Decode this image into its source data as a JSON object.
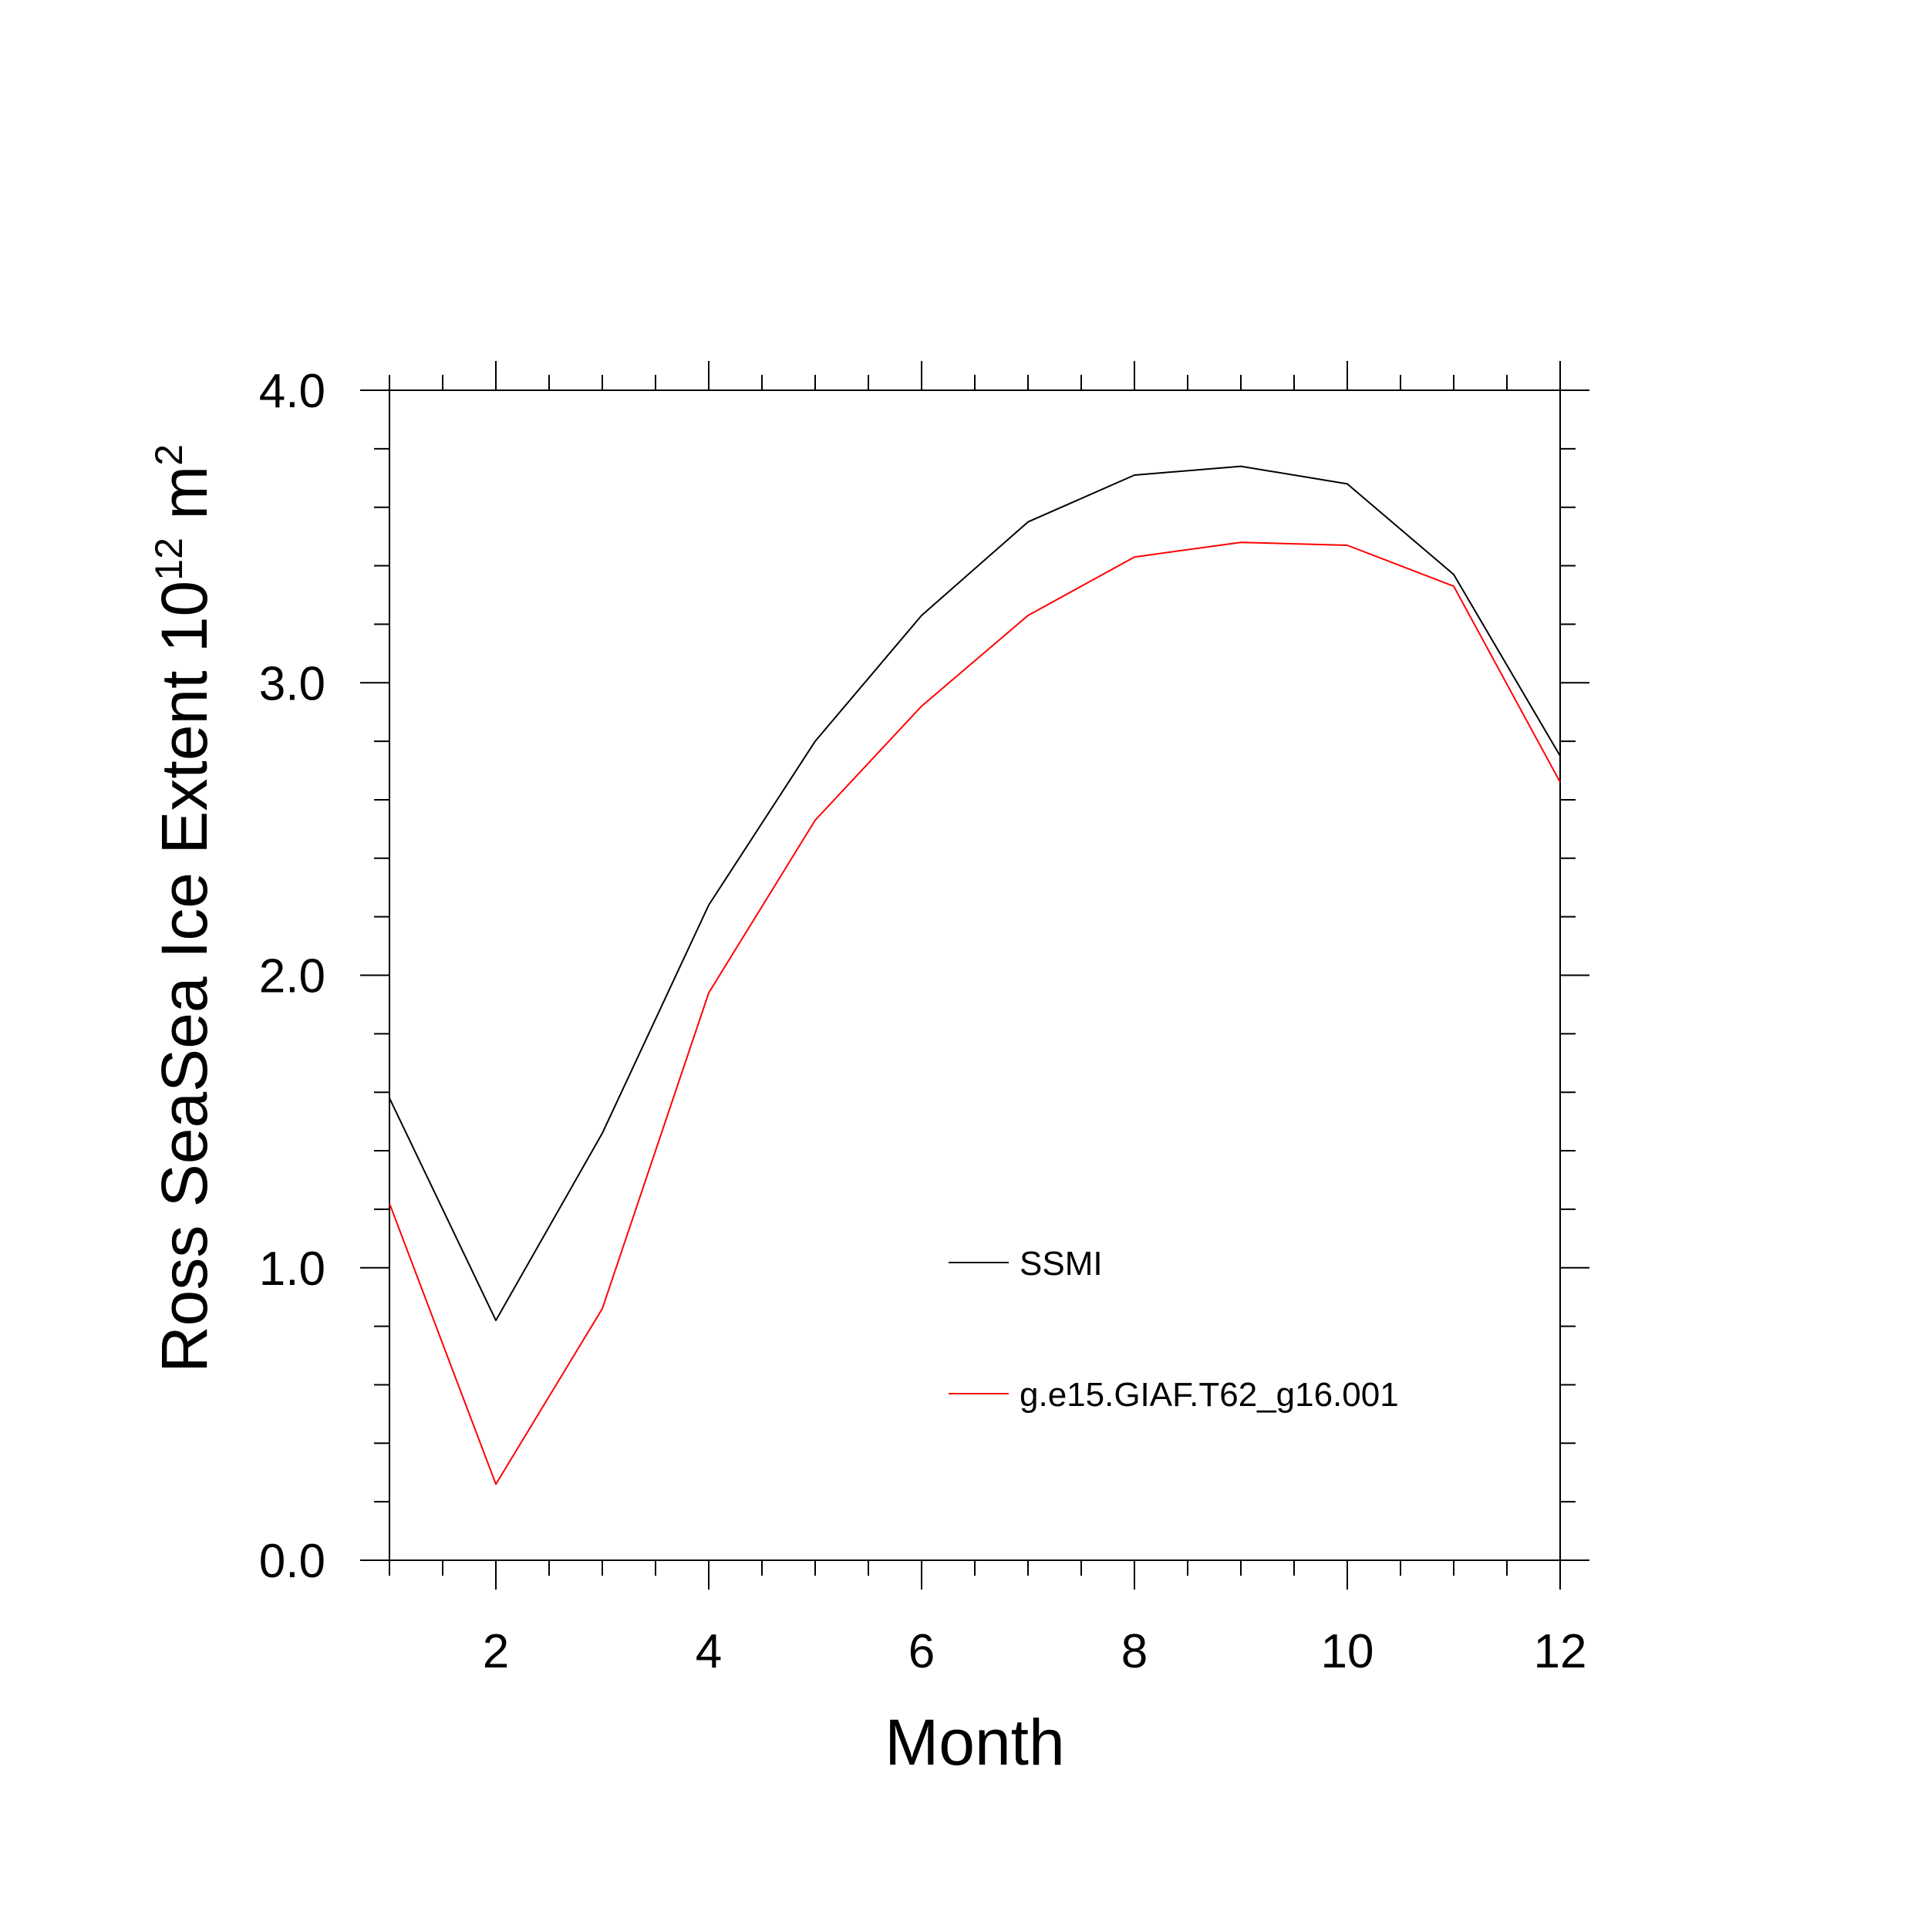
{
  "chart_data": {
    "type": "line",
    "xlabel": "Month",
    "ylabel": {
      "prefix": "Ross SeaSea Ice Extent 10",
      "superscript": "12",
      "unit": " m",
      "unit_superscript": "2"
    },
    "xlim": [
      1,
      12
    ],
    "ylim": [
      0.0,
      4.0
    ],
    "x_major_ticks": [
      2,
      4,
      6,
      8,
      10,
      12
    ],
    "x_tick_labels": [
      "2",
      "4",
      "6",
      "8",
      "10",
      "12"
    ],
    "y_major_ticks": [
      0.0,
      1.0,
      2.0,
      3.0,
      4.0
    ],
    "y_tick_labels": [
      "0.0",
      "1.0",
      "2.0",
      "3.0",
      "4.0"
    ],
    "grid": false,
    "legend_position": "center-right, inside plot",
    "x": [
      1,
      2,
      3,
      4,
      5,
      6,
      7,
      8,
      9,
      10,
      11,
      12
    ],
    "series": [
      {
        "name": "SSMI",
        "color": "#000000",
        "values": [
          1.58,
          0.82,
          1.46,
          2.24,
          2.8,
          3.23,
          3.55,
          3.71,
          3.74,
          3.68,
          3.37,
          2.75
        ]
      },
      {
        "name": "g.e15.GIAF.T62_g16.001",
        "color": "#ff0000",
        "values": [
          1.22,
          0.26,
          0.86,
          1.94,
          2.53,
          2.92,
          3.23,
          3.43,
          3.48,
          3.47,
          3.33,
          2.66
        ]
      }
    ]
  }
}
